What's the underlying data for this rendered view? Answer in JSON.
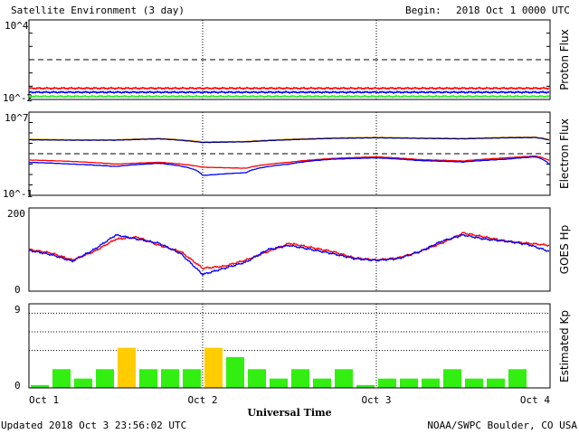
{
  "header": {
    "title": "Satellite Environment (3 day)",
    "begin_label": "Begin:",
    "begin_value": "2018 Oct 1 0000 UTC"
  },
  "footer": {
    "updated": "Updated 2018 Oct  3 23:56:02 UTC",
    "credit": "NOAA/SWPC Boulder, CO USA"
  },
  "x_axis": {
    "label": "Universal Time",
    "ticks": [
      "Oct 1",
      "Oct 2",
      "Oct 3",
      "Oct 4"
    ]
  },
  "colors": {
    "red": "#ff0000",
    "blue": "#0000ff",
    "green": "#22ee22",
    "orange": "#ffa500",
    "navy": "#000080",
    "kp_green": "#33ee11",
    "kp_yellow": "#ffcc00"
  },
  "chart_data": [
    {
      "type": "line",
      "name": "proton-flux",
      "ylabel": "Proton Flux",
      "y_tick_labels": [
        "10^4",
        "10^-2"
      ],
      "yscale": "log",
      "ylim": [
        0.01,
        10000
      ],
      "x_unit": "hours since 2018 Oct 1 0000 UTC",
      "x": [
        0,
        12,
        24,
        36,
        48,
        60,
        72
      ],
      "threshold": 10,
      "series": [
        {
          "color": "red",
          "values": [
            0.07,
            0.07,
            0.07,
            0.07,
            0.07,
            0.07,
            0.07
          ]
        },
        {
          "color": "blue",
          "values": [
            0.035,
            0.035,
            0.035,
            0.035,
            0.035,
            0.035,
            0.035
          ]
        },
        {
          "color": "green",
          "values": [
            0.017,
            0.017,
            0.017,
            0.017,
            0.017,
            0.017,
            0.017
          ]
        }
      ]
    },
    {
      "type": "line",
      "name": "electron-flux",
      "ylabel": "Electron Flux",
      "y_tick_labels": [
        "10^7",
        "10^-1"
      ],
      "yscale": "log",
      "ylim": [
        0.1,
        10000000
      ],
      "x": [
        0,
        6,
        12,
        18,
        24,
        30,
        36,
        42,
        48,
        54,
        60,
        66,
        70,
        72
      ],
      "threshold": 1000,
      "series": [
        {
          "color": "orange",
          "values": [
            25000,
            22000,
            22000,
            30000,
            14000,
            15000,
            25000,
            33000,
            38000,
            32000,
            30000,
            38000,
            40000,
            22000
          ]
        },
        {
          "color": "navy",
          "values": [
            22000,
            20000,
            20000,
            27000,
            12000,
            14000,
            22000,
            30000,
            34000,
            30000,
            27000,
            34000,
            36000,
            20000
          ]
        },
        {
          "color": "red",
          "values": [
            250,
            180,
            100,
            150,
            50,
            40,
            150,
            350,
            500,
            270,
            200,
            400,
            600,
            200
          ]
        },
        {
          "color": "blue",
          "values": [
            150,
            100,
            60,
            120,
            8,
            15,
            100,
            300,
            400,
            220,
            160,
            300,
            500,
            60
          ]
        }
      ]
    },
    {
      "type": "line",
      "name": "goes-hp",
      "ylabel": "GOES Hp",
      "y_tick_labels": [
        "200",
        "0"
      ],
      "ylim": [
        0,
        200
      ],
      "x": [
        0,
        3,
        6,
        9,
        12,
        15,
        18,
        21,
        24,
        27,
        30,
        33,
        36,
        39,
        42,
        45,
        48,
        51,
        54,
        57,
        60,
        63,
        66,
        69,
        72
      ],
      "series": [
        {
          "color": "red",
          "values": [
            100,
            92,
            75,
            95,
            125,
            130,
            110,
            95,
            55,
            60,
            75,
            95,
            115,
            105,
            95,
            80,
            75,
            80,
            95,
            115,
            140,
            130,
            120,
            115,
            110
          ]
        },
        {
          "color": "blue",
          "values": [
            98,
            88,
            72,
            100,
            135,
            125,
            115,
            90,
            40,
            55,
            70,
            100,
            110,
            100,
            90,
            78,
            74,
            78,
            95,
            120,
            135,
            125,
            120,
            112,
            95
          ]
        }
      ]
    },
    {
      "type": "bar",
      "name": "estimated-kp",
      "ylabel": "Estimated Kp",
      "y_tick_labels": [
        "9",
        "0"
      ],
      "ylim": [
        0,
        9
      ],
      "bar_hours": 3,
      "values": [
        0.3,
        2,
        1,
        2,
        4.3,
        2,
        2,
        2,
        4.3,
        3.3,
        2,
        1,
        2,
        1,
        2,
        0.3,
        1,
        1,
        1,
        2,
        1,
        1,
        2,
        0
      ],
      "storm_threshold": 4
    }
  ]
}
